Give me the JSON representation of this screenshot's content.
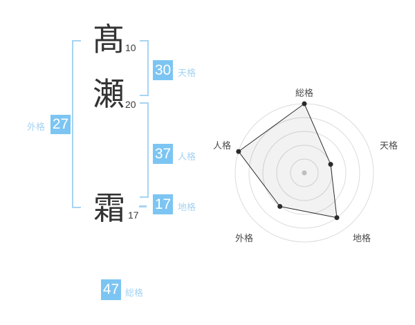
{
  "name_panel": {
    "characters": [
      {
        "char": "髙",
        "strokes": "10"
      },
      {
        "char": "瀬",
        "strokes": "20"
      },
      {
        "char": "霜",
        "strokes": "17"
      }
    ],
    "kaku": {
      "tenkaku": {
        "label": "天格",
        "value": "30"
      },
      "jinkaku": {
        "label": "人格",
        "value": "37"
      },
      "chikaku": {
        "label": "地格",
        "value": "17"
      },
      "gaikaku": {
        "label": "外格",
        "value": "27"
      },
      "soukaku": {
        "label": "総格",
        "value": "47"
      }
    }
  },
  "colors": {
    "badge_blue": "#7cc5f2",
    "bracket_blue": "#a6d4f2",
    "label_blue": "#a3d2f2",
    "kanji_dark": "#333333",
    "chart_label_gray": "#4a4a4a",
    "ring_gray": "#dbdbdb",
    "center_dot_gray": "#c8c8c8",
    "series_dark": "#2b2b2b",
    "series_fill": "rgba(0,0,0,0.05)"
  },
  "chart_data": {
    "type": "radar",
    "axes": [
      "総格",
      "天格",
      "地格",
      "外格",
      "人格"
    ],
    "values": [
      5,
      2,
      4,
      3,
      5
    ],
    "max": 5,
    "rings": 5,
    "grid": "circular",
    "legend": "none",
    "start_axis": "top",
    "direction": "clockwise"
  }
}
